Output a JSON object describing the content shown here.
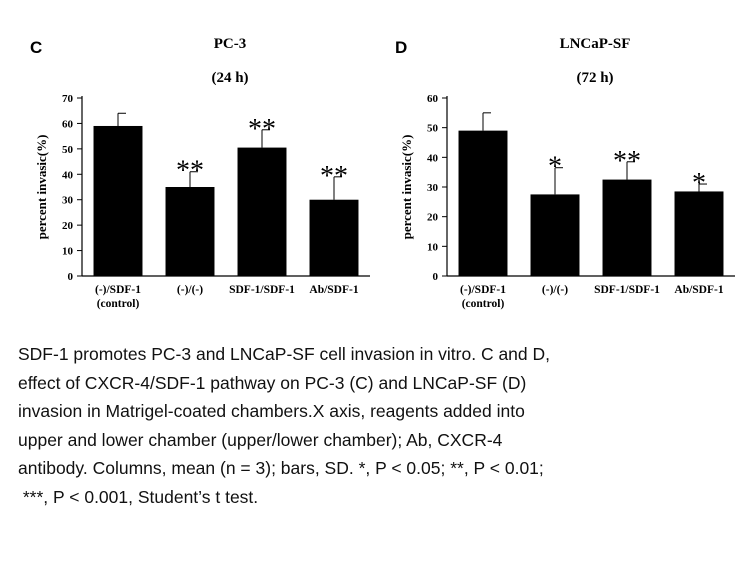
{
  "chart_data": [
    {
      "type": "bar",
      "panel_label": "C",
      "title": "PC-3",
      "subtitle": "(24 h)",
      "ylabel": "percent invasic(%)",
      "xlabel": "",
      "ylim": [
        0,
        70
      ],
      "yticks": [
        0,
        10,
        20,
        30,
        40,
        50,
        60,
        70
      ],
      "categories": [
        [
          "(-)/SDF-1",
          "(control)"
        ],
        [
          "(-)/(-)"
        ],
        [
          "SDF-1/SDF-1"
        ],
        [
          "Ab/SDF-1"
        ]
      ],
      "values": [
        59,
        35,
        50.5,
        30
      ],
      "errors": [
        5,
        6,
        7,
        9
      ],
      "significance": [
        "",
        "**",
        "**",
        "**"
      ],
      "bar_color": "#000000"
    },
    {
      "type": "bar",
      "panel_label": "D",
      "title": "LNCaP-SF",
      "subtitle": "(72 h)",
      "ylabel": "percent invasic(%)",
      "xlabel": "",
      "ylim": [
        0,
        60
      ],
      "yticks": [
        0,
        10,
        20,
        30,
        40,
        50,
        60
      ],
      "categories": [
        [
          "(-)/SDF-1",
          "(control)"
        ],
        [
          "(-)/(-)"
        ],
        [
          "SDF-1/SDF-1"
        ],
        [
          "Ab/SDF-1"
        ]
      ],
      "values": [
        49,
        27.5,
        32.5,
        28.5
      ],
      "errors": [
        6,
        9,
        6,
        2.5
      ],
      "significance": [
        "",
        "*",
        "**",
        "*"
      ],
      "bar_color": "#000000"
    }
  ],
  "caption": {
    "lines": [
      "SDF-1 promotes PC-3 and LNCaP-SF cell invasion in vitro. C and D,",
      "effect of CXCR-4/SDF-1 pathway on PC-3 (C) and LNCaP-SF (D)",
      "invasion in Matrigel-coated chambers.X axis, reagents added into",
      "upper and lower chamber (upper/lower chamber); Ab, CXCR-4",
      "antibody. Columns, mean (n = 3); bars, SD. *, P < 0.05; **, P < 0.01;",
      " ***, P < 0.001, Student’s t test."
    ]
  }
}
